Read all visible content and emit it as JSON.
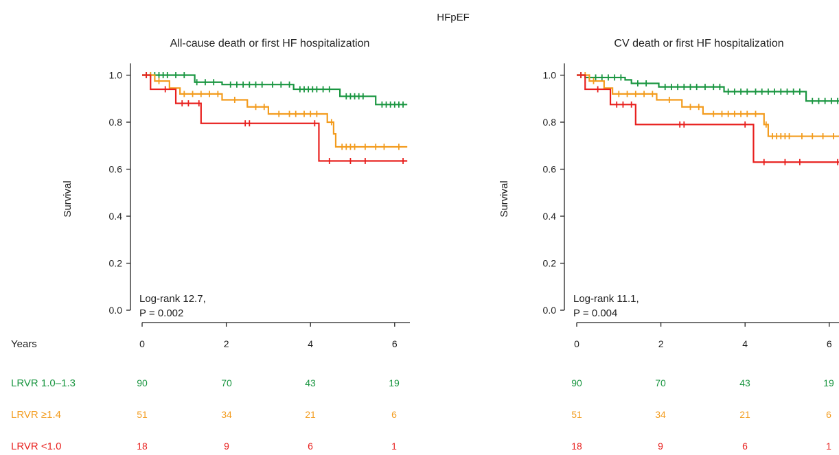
{
  "figure_title": "HFpEF",
  "colors": {
    "LRVR 1.0–1.3": "#1a9641",
    "LRVR ≥1.4": "#f39c1e",
    "LRVR <1.0": "#e8201e",
    "axis": "#222222"
  },
  "x_axis_row_label": "Years",
  "chart_data": [
    {
      "type": "line",
      "subtype": "kaplan-meier",
      "title": "All-cause death or first HF hospitalization",
      "ylabel": "Survival",
      "xlabel": "",
      "xlim": [
        0,
        6.3
      ],
      "ylim": [
        0,
        1.05
      ],
      "xticks": [
        "0",
        "2",
        "4",
        "6"
      ],
      "yticks": [
        "0.0",
        "0.2",
        "0.4",
        "0.6",
        "0.8",
        "1.0"
      ],
      "annotation": [
        "Log-rank 12.7,",
        "P = 0.002"
      ],
      "series": [
        {
          "name": "LRVR 1.0–1.3",
          "steps": [
            [
              0,
              1.0
            ],
            [
              1.25,
              0.97
            ],
            [
              1.9,
              0.96
            ],
            [
              3.6,
              0.94
            ],
            [
              4.7,
              0.91
            ],
            [
              5.55,
              0.875
            ]
          ],
          "censors": [
            0.1,
            0.2,
            0.3,
            0.4,
            0.5,
            0.6,
            0.8,
            1.0,
            1.3,
            1.5,
            1.7,
            2.1,
            2.25,
            2.4,
            2.55,
            2.7,
            2.85,
            3.1,
            3.3,
            3.5,
            3.75,
            3.85,
            3.95,
            4.05,
            4.15,
            4.3,
            4.45,
            4.85,
            4.95,
            5.05,
            5.15,
            5.25,
            5.7,
            5.8,
            5.9,
            6.0,
            6.1,
            6.2
          ]
        },
        {
          "name": "LRVR ≥1.4",
          "steps": [
            [
              0,
              1.0
            ],
            [
              0.3,
              0.975
            ],
            [
              0.65,
              0.945
            ],
            [
              0.9,
              0.92
            ],
            [
              1.9,
              0.895
            ],
            [
              2.5,
              0.865
            ],
            [
              3.0,
              0.835
            ],
            [
              4.4,
              0.8
            ],
            [
              4.55,
              0.75
            ],
            [
              4.6,
              0.695
            ]
          ],
          "censors": [
            0.2,
            0.4,
            1.0,
            1.2,
            1.4,
            1.6,
            1.8,
            2.2,
            2.7,
            2.9,
            3.25,
            3.5,
            3.65,
            3.85,
            4.0,
            4.15,
            4.5,
            4.75,
            4.85,
            4.95,
            5.05,
            5.3,
            5.55,
            5.75,
            6.1
          ]
        },
        {
          "name": "LRVR <1.0",
          "steps": [
            [
              0,
              1.0
            ],
            [
              0.2,
              0.94
            ],
            [
              0.8,
              0.88
            ],
            [
              1.4,
              0.795
            ],
            [
              4.2,
              0.635
            ]
          ],
          "censors": [
            0.1,
            0.55,
            0.95,
            1.1,
            1.35,
            2.45,
            2.55,
            4.1,
            4.45,
            4.95,
            5.3,
            6.2
          ]
        }
      ]
    },
    {
      "type": "line",
      "subtype": "kaplan-meier",
      "title": "CV death or first HF hospitalization",
      "ylabel": "Survival",
      "xlabel": "",
      "xlim": [
        0,
        6.3
      ],
      "ylim": [
        0,
        1.05
      ],
      "xticks": [
        "0",
        "2",
        "4",
        "6"
      ],
      "yticks": [
        "0.0",
        "0.2",
        "0.4",
        "0.6",
        "0.8",
        "1.0"
      ],
      "annotation": [
        "Log-rank 11.1,",
        "P = 0.004"
      ],
      "series": [
        {
          "name": "LRVR 1.0–1.3",
          "steps": [
            [
              0,
              1.0
            ],
            [
              0.2,
              0.99
            ],
            [
              1.15,
              0.98
            ],
            [
              1.3,
              0.965
            ],
            [
              1.95,
              0.95
            ],
            [
              3.5,
              0.93
            ],
            [
              5.45,
              0.89
            ]
          ],
          "censors": [
            0.1,
            0.3,
            0.45,
            0.6,
            0.75,
            0.9,
            1.05,
            1.45,
            1.65,
            2.1,
            2.25,
            2.4,
            2.55,
            2.7,
            2.85,
            3.05,
            3.25,
            3.4,
            3.6,
            3.75,
            3.9,
            4.05,
            4.25,
            4.4,
            4.55,
            4.7,
            4.85,
            5.0,
            5.15,
            5.3,
            5.6,
            5.75,
            5.9,
            6.05,
            6.2
          ]
        },
        {
          "name": "LRVR ≥1.4",
          "steps": [
            [
              0,
              1.0
            ],
            [
              0.3,
              0.975
            ],
            [
              0.65,
              0.945
            ],
            [
              0.85,
              0.92
            ],
            [
              1.9,
              0.895
            ],
            [
              2.5,
              0.865
            ],
            [
              3.0,
              0.835
            ],
            [
              4.45,
              0.79
            ],
            [
              4.55,
              0.74
            ]
          ],
          "censors": [
            0.2,
            0.4,
            1.0,
            1.2,
            1.4,
            1.6,
            1.8,
            2.2,
            2.7,
            2.9,
            3.25,
            3.45,
            3.6,
            3.75,
            3.9,
            4.05,
            4.25,
            4.5,
            4.65,
            4.75,
            4.85,
            4.95,
            5.05,
            5.35,
            5.6,
            5.85,
            6.1
          ]
        },
        {
          "name": "LRVR <1.0",
          "steps": [
            [
              0,
              1.0
            ],
            [
              0.2,
              0.94
            ],
            [
              0.8,
              0.875
            ],
            [
              1.4,
              0.79
            ],
            [
              4.2,
              0.63
            ]
          ],
          "censors": [
            0.1,
            0.5,
            0.95,
            1.1,
            1.3,
            2.45,
            2.55,
            4.0,
            4.45,
            4.95,
            5.3,
            6.2
          ]
        }
      ]
    }
  ],
  "risk_table": {
    "rows": [
      {
        "label": "LRVR 1.0–1.3",
        "left": [
          "90",
          "70",
          "43",
          "19"
        ],
        "right": [
          "90",
          "70",
          "43",
          "19"
        ]
      },
      {
        "label": "LRVR ≥1.4",
        "left": [
          "51",
          "34",
          "21",
          "6"
        ],
        "right": [
          "51",
          "34",
          "21",
          "6"
        ]
      },
      {
        "label": "LRVR <1.0",
        "left": [
          "18",
          "9",
          "6",
          "1"
        ],
        "right": [
          "18",
          "9",
          "6",
          "1"
        ]
      }
    ]
  }
}
